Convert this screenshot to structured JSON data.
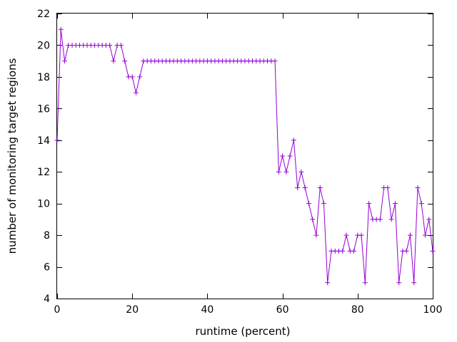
{
  "chart_data": {
    "type": "line",
    "xlabel": "runtime (percent)",
    "ylabel": "number of monitoring target regions",
    "xlim": [
      0,
      100
    ],
    "ylim": [
      4,
      22
    ],
    "xticks": [
      0,
      20,
      40,
      60,
      80,
      100
    ],
    "yticks": [
      4,
      6,
      8,
      10,
      12,
      14,
      16,
      18,
      20,
      22
    ],
    "grid": false,
    "legend": "none",
    "marker": "+",
    "series": [
      {
        "color": "#9400d3",
        "x": [
          0,
          1,
          2,
          3,
          4,
          5,
          6,
          7,
          8,
          9,
          10,
          11,
          12,
          13,
          14,
          15,
          16,
          17,
          18,
          19,
          20,
          21,
          22,
          23,
          24,
          25,
          26,
          27,
          28,
          29,
          30,
          31,
          32,
          33,
          34,
          35,
          36,
          37,
          38,
          39,
          40,
          41,
          42,
          43,
          44,
          45,
          46,
          47,
          48,
          49,
          50,
          51,
          52,
          53,
          54,
          55,
          56,
          57,
          58,
          59,
          60,
          61,
          62,
          63,
          64,
          65,
          66,
          67,
          68,
          69,
          70,
          71,
          72,
          73,
          74,
          75,
          76,
          77,
          78,
          79,
          80,
          81,
          82,
          83,
          84,
          85,
          86,
          87,
          88,
          89,
          90,
          91,
          92,
          93,
          94,
          95,
          96,
          97,
          98,
          99,
          100
        ],
        "values": [
          14,
          21,
          19,
          20,
          20,
          20,
          20,
          20,
          20,
          20,
          20,
          20,
          20,
          20,
          20,
          19,
          20,
          20,
          19,
          18,
          18,
          17,
          18,
          19,
          19,
          19,
          19,
          19,
          19,
          19,
          19,
          19,
          19,
          19,
          19,
          19,
          19,
          19,
          19,
          19,
          19,
          19,
          19,
          19,
          19,
          19,
          19,
          19,
          19,
          19,
          19,
          19,
          19,
          19,
          19,
          19,
          19,
          19,
          19,
          12,
          13,
          12,
          13,
          14,
          11,
          12,
          11,
          10,
          9,
          8,
          11,
          10,
          5,
          7,
          7,
          7,
          7,
          8,
          7,
          7,
          8,
          8,
          5,
          10,
          9,
          9,
          9,
          11,
          11,
          9,
          10,
          5,
          7,
          7,
          8,
          5,
          11,
          10,
          8,
          9,
          7
        ]
      }
    ]
  }
}
